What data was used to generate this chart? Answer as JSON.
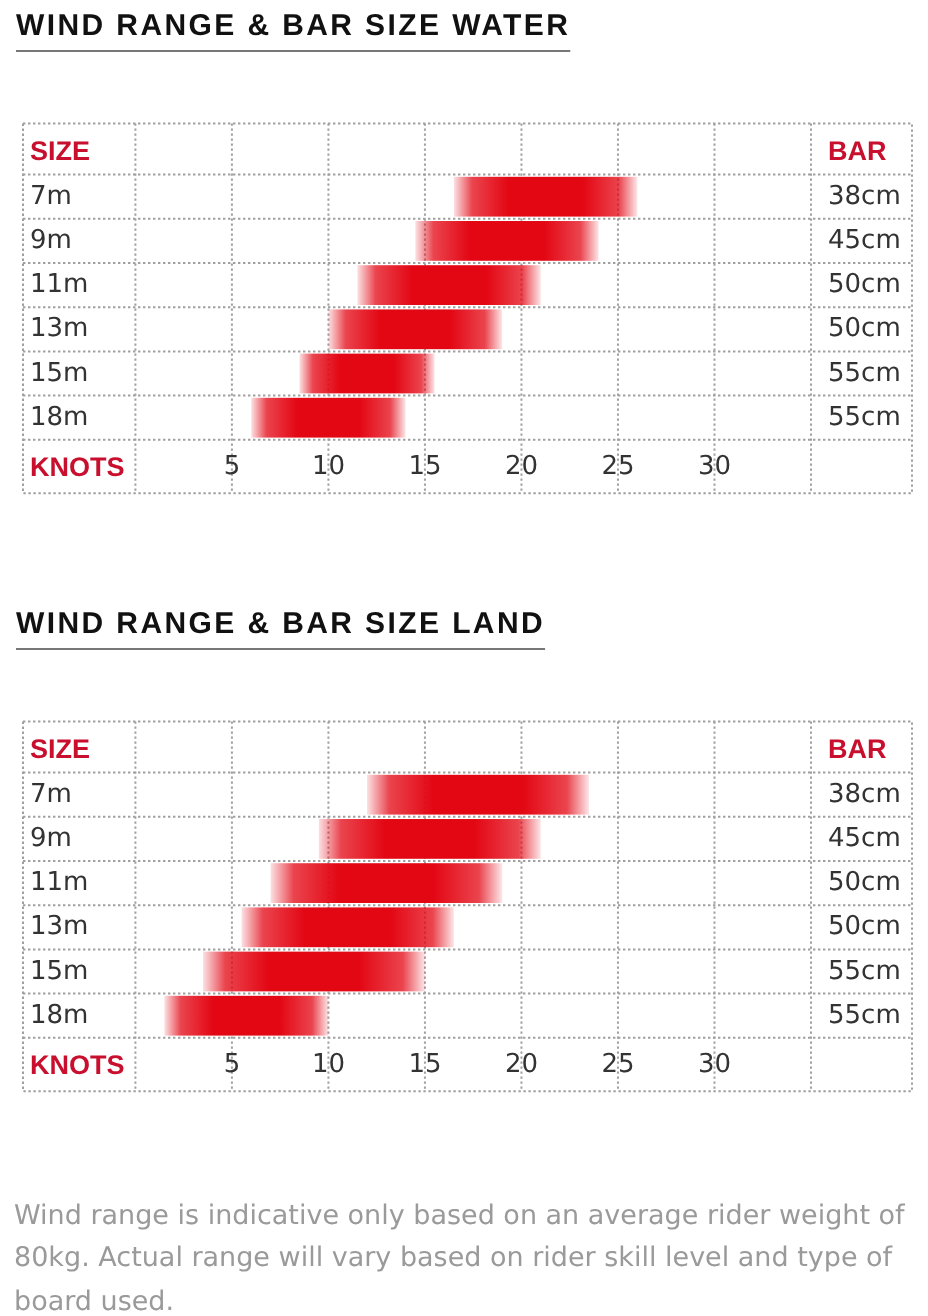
{
  "chart_data": [
    {
      "type": "bar",
      "orientation": "horizontal",
      "title": "WIND RANGE & BAR SIZE WATER",
      "ylabel": "SIZE",
      "y2label": "BAR",
      "xlabel": "KNOTS",
      "categories": [
        "7m",
        "9m",
        "11m",
        "13m",
        "15m",
        "18m"
      ],
      "y2_categories": [
        "38cm",
        "45cm",
        "50cm",
        "50cm",
        "55cm",
        "55cm"
      ],
      "base": [
        16.5,
        14.5,
        11.5,
        10,
        8.5,
        6
      ],
      "values": [
        9.5,
        9.5,
        9.5,
        9,
        7,
        8
      ],
      "color": "#e30613",
      "xlim": [
        0,
        35
      ],
      "xticks": [
        5,
        10,
        15,
        20,
        25,
        30
      ],
      "grid": true
    },
    {
      "type": "bar",
      "orientation": "horizontal",
      "title": "WIND RANGE & BAR SIZE LAND",
      "ylabel": "SIZE",
      "y2label": "BAR",
      "xlabel": "KNOTS",
      "categories": [
        "7m",
        "9m",
        "11m",
        "13m",
        "15m",
        "18m"
      ],
      "y2_categories": [
        "38cm",
        "45cm",
        "50cm",
        "50cm",
        "55cm",
        "55cm"
      ],
      "base": [
        12,
        9.5,
        7,
        5.5,
        3.5,
        1.5
      ],
      "values": [
        11.5,
        11.5,
        12,
        11,
        11.5,
        8.5
      ],
      "color": "#e30613",
      "xlim": [
        0,
        35
      ],
      "xticks": [
        5,
        10,
        15,
        20,
        25,
        30
      ],
      "grid": true,
      "annotations": [
        "Wind range is indicative only based on an average rider weight of 80kg. Actual range will vary based on rider skill level and type of board used."
      ]
    }
  ]
}
